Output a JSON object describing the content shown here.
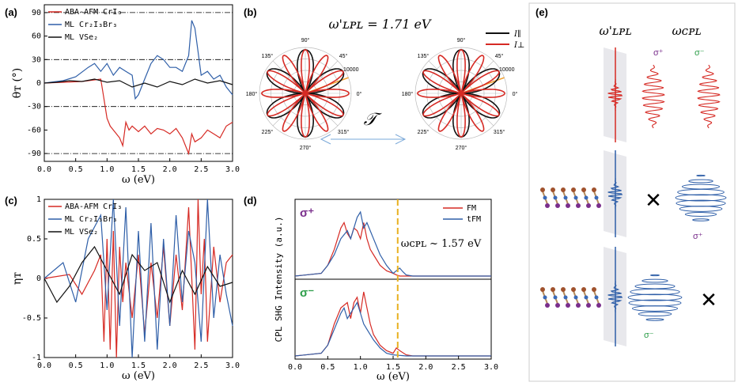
{
  "colors": {
    "red": "#d62a24",
    "blue": "#2f5fa8",
    "black": "#111111",
    "orange": "#f0a030",
    "yellow": "#e8b020",
    "purple": "#7a2f8c",
    "green": "#2e9e4a"
  },
  "chart_data": [
    {
      "panel": "(a)",
      "type": "line",
      "xlabel": "ω (eV)",
      "ylabel": "θᴛ (°)",
      "xlim": [
        0,
        3
      ],
      "ylim": [
        -100,
        100
      ],
      "xticks": [
        "0.0",
        "0.5",
        "1.0",
        "1.5",
        "2.0",
        "2.5",
        "3.0"
      ],
      "yticks": [
        "90",
        "60",
        "30",
        "0",
        "-30",
        "-60",
        "-90"
      ],
      "ytick_values": [
        90,
        60,
        30,
        0,
        -30,
        -60,
        -90
      ],
      "reference_lines": [
        90,
        30,
        -30,
        -90
      ],
      "legend": [
        "ABA-AFM CrI₃",
        "ML Cr₂I₃Br₃",
        "ML VSe₂"
      ],
      "series": [
        {
          "name": "ABA-AFM CrI₃",
          "color": "red",
          "x": [
            0,
            0.3,
            0.6,
            0.9,
            0.95,
            1.0,
            1.05,
            1.1,
            1.15,
            1.2,
            1.25,
            1.3,
            1.35,
            1.4,
            1.5,
            1.6,
            1.7,
            1.8,
            1.9,
            2.0,
            2.1,
            2.2,
            2.3,
            2.35,
            2.4,
            2.5,
            2.6,
            2.7,
            2.8,
            2.9,
            3.0
          ],
          "y": [
            0,
            1,
            2,
            5,
            -20,
            -45,
            -55,
            -60,
            -65,
            -70,
            -80,
            -50,
            -60,
            -55,
            -62,
            -55,
            -65,
            -58,
            -60,
            -65,
            -58,
            -70,
            -90,
            -65,
            -75,
            -70,
            -60,
            -65,
            -70,
            -55,
            -50
          ]
        },
        {
          "name": "ML Cr₂I₃Br₃",
          "color": "blue",
          "x": [
            0,
            0.3,
            0.5,
            0.7,
            0.8,
            0.9,
            1.0,
            1.1,
            1.2,
            1.3,
            1.4,
            1.45,
            1.5,
            1.6,
            1.7,
            1.8,
            1.9,
            2.0,
            2.1,
            2.2,
            2.3,
            2.35,
            2.4,
            2.45,
            2.5,
            2.6,
            2.7,
            2.8,
            2.9,
            3.0
          ],
          "y": [
            0,
            3,
            8,
            20,
            25,
            15,
            25,
            10,
            20,
            15,
            10,
            -20,
            -15,
            5,
            25,
            35,
            30,
            20,
            20,
            15,
            35,
            80,
            70,
            40,
            10,
            15,
            5,
            10,
            -5,
            -15
          ]
        },
        {
          "name": "ML VSe₂",
          "color": "black",
          "x": [
            0,
            0.2,
            0.4,
            0.6,
            0.8,
            1.0,
            1.2,
            1.4,
            1.6,
            1.8,
            2.0,
            2.2,
            2.4,
            2.6,
            2.8,
            3.0
          ],
          "y": [
            0,
            1,
            3,
            2,
            5,
            1,
            3,
            -5,
            0,
            -5,
            2,
            -2,
            5,
            0,
            3,
            -2
          ]
        }
      ]
    },
    {
      "panel": "(b)",
      "type": "polar",
      "title": "ω'ʟᴘʟ = 1.71 eV",
      "symbol": "𝒯",
      "angle_labels": [
        "0°",
        "45°",
        "90°",
        "135°",
        "180°",
        "225°",
        "270°",
        "315°"
      ],
      "radial_label": "10000",
      "legend": [
        "I∥",
        "I⊥"
      ],
      "series": [
        {
          "name": "I∥",
          "color": "black",
          "petals": 6,
          "offset_deg": 90
        },
        {
          "name": "I⊥",
          "color": "red",
          "petals": 12,
          "offset_deg": 0
        }
      ]
    },
    {
      "panel": "(c)",
      "type": "line",
      "xlabel": "ω (eV)",
      "ylabel": "ηᴛ",
      "xlim": [
        0,
        3
      ],
      "ylim": [
        -1,
        1
      ],
      "xticks": [
        "0.0",
        "0.5",
        "1.0",
        "1.5",
        "2.0",
        "2.5",
        "3.0"
      ],
      "yticks": [
        "1",
        "0.5",
        "0",
        "-0.5",
        "-1"
      ],
      "ytick_values": [
        1,
        0.5,
        0,
        -0.5,
        -1
      ],
      "legend": [
        "ABA-AFM CrI₃",
        "ML Cr₂I₃Br₃",
        "ML VSe₂"
      ],
      "series": [
        {
          "name": "ABA-AFM CrI₃",
          "color": "red",
          "x": [
            0,
            0.4,
            0.6,
            0.8,
            0.9,
            0.95,
            1.0,
            1.05,
            1.1,
            1.15,
            1.2,
            1.25,
            1.3,
            1.4,
            1.5,
            1.6,
            1.7,
            1.8,
            1.9,
            2.0,
            2.1,
            2.2,
            2.3,
            2.4,
            2.45,
            2.5,
            2.55,
            2.6,
            2.7,
            2.8,
            2.9,
            3.0
          ],
          "y": [
            0,
            0.05,
            -0.2,
            0.1,
            0.3,
            -0.8,
            0.5,
            -0.9,
            0.6,
            -1.0,
            0.4,
            -0.3,
            0.2,
            -0.5,
            0.3,
            -0.7,
            0.2,
            -0.5,
            0.4,
            -0.6,
            0.3,
            -0.4,
            0.9,
            -0.9,
            1.0,
            -0.2,
            0.5,
            -0.8,
            0.4,
            -0.3,
            0.2,
            0.3
          ]
        },
        {
          "name": "ML Cr₂I₃Br₃",
          "color": "blue",
          "x": [
            0,
            0.3,
            0.5,
            0.7,
            0.9,
            1.0,
            1.1,
            1.2,
            1.3,
            1.4,
            1.5,
            1.6,
            1.7,
            1.8,
            1.9,
            2.0,
            2.1,
            2.2,
            2.3,
            2.4,
            2.5,
            2.6,
            2.7,
            2.8,
            2.9,
            3.0
          ],
          "y": [
            0,
            0.2,
            -0.3,
            0.5,
            0.8,
            -0.4,
            1.0,
            -0.6,
            0.9,
            -1.0,
            0.6,
            -0.8,
            0.7,
            -0.9,
            0.5,
            -0.6,
            0.8,
            -0.3,
            0.6,
            0.2,
            -0.8,
            1.0,
            -0.5,
            0.3,
            -0.2,
            -0.6
          ]
        },
        {
          "name": "ML VSe₂",
          "color": "black",
          "x": [
            0,
            0.2,
            0.4,
            0.6,
            0.8,
            1.0,
            1.2,
            1.4,
            1.6,
            1.8,
            2.0,
            2.2,
            2.4,
            2.6,
            2.8,
            3.0
          ],
          "y": [
            0,
            -0.3,
            -0.1,
            0.2,
            0.4,
            0.1,
            -0.2,
            0.3,
            0.1,
            0.2,
            -0.3,
            0.1,
            -0.2,
            0.15,
            -0.1,
            -0.05
          ]
        }
      ]
    },
    {
      "panel": "(d)",
      "type": "line",
      "xlabel": "ω (eV)",
      "ylabel": "CPL SHG Intensity (a.u.)",
      "xlim": [
        0,
        3
      ],
      "xticks": [
        "0.0",
        "0.5",
        "1.0",
        "1.5",
        "2.0",
        "2.5",
        "3.0"
      ],
      "marker_x": 1.57,
      "annotation": "ωᴄᴘʟ ~ 1.57 eV",
      "legend": [
        "FM",
        "tFM"
      ],
      "subplots": [
        {
          "label": "σ⁺",
          "series": [
            {
              "name": "FM",
              "color": "red",
              "x": [
                0,
                0.4,
                0.5,
                0.6,
                0.7,
                0.75,
                0.8,
                0.85,
                0.9,
                0.95,
                1.0,
                1.05,
                1.1,
                1.15,
                1.2,
                1.3,
                1.4,
                1.5,
                1.55,
                1.6,
                1.7,
                1.8,
                2.0,
                2.5,
                3.0
              ],
              "y": [
                0,
                0.05,
                0.2,
                0.5,
                0.9,
                1.0,
                0.8,
                0.7,
                0.9,
                0.85,
                0.7,
                1.0,
                0.7,
                0.5,
                0.4,
                0.2,
                0.1,
                0.05,
                0.02,
                0.0,
                0,
                0,
                0,
                0,
                0
              ]
            },
            {
              "name": "tFM",
              "color": "blue",
              "x": [
                0,
                0.4,
                0.5,
                0.6,
                0.7,
                0.8,
                0.85,
                0.9,
                0.95,
                1.0,
                1.05,
                1.1,
                1.2,
                1.3,
                1.4,
                1.5,
                1.55,
                1.6,
                1.65,
                1.7,
                1.8,
                2.0,
                2.5,
                3.0
              ],
              "y": [
                0,
                0.05,
                0.2,
                0.4,
                0.7,
                0.85,
                0.7,
                0.9,
                1.1,
                1.2,
                0.9,
                1.0,
                0.7,
                0.4,
                0.2,
                0.05,
                0.1,
                0.15,
                0.08,
                0.02,
                0,
                0,
                0,
                0
              ]
            }
          ]
        },
        {
          "label": "σ⁻",
          "series": [
            {
              "name": "FM",
              "color": "red",
              "x": [
                0,
                0.4,
                0.5,
                0.6,
                0.7,
                0.8,
                0.85,
                0.9,
                0.95,
                1.0,
                1.05,
                1.1,
                1.15,
                1.2,
                1.3,
                1.4,
                1.5,
                1.55,
                1.6,
                1.7,
                1.8,
                2.0,
                2.5,
                3.0
              ],
              "y": [
                0,
                0.05,
                0.2,
                0.6,
                0.9,
                1.0,
                0.7,
                1.0,
                1.1,
                0.8,
                1.2,
                0.9,
                0.6,
                0.4,
                0.2,
                0.1,
                0.05,
                0.15,
                0.1,
                0.02,
                0,
                0,
                0,
                0
              ]
            },
            {
              "name": "tFM",
              "color": "blue",
              "x": [
                0,
                0.4,
                0.5,
                0.6,
                0.7,
                0.75,
                0.8,
                0.85,
                0.9,
                0.95,
                1.0,
                1.05,
                1.1,
                1.2,
                1.3,
                1.4,
                1.5,
                1.6,
                1.7,
                2.0,
                2.5,
                3.0
              ],
              "y": [
                0,
                0.05,
                0.2,
                0.5,
                0.8,
                0.9,
                0.7,
                0.8,
                0.9,
                1.0,
                0.8,
                0.6,
                0.5,
                0.3,
                0.15,
                0.05,
                0.02,
                0.01,
                0,
                0,
                0,
                0
              ]
            }
          ]
        }
      ]
    },
    {
      "panel": "(e)",
      "type": "diagram",
      "header_lpl": "ω'ʟᴘʟ",
      "header_cpl": "ωᴄᴘʟ",
      "sigma_plus": "σ⁺",
      "sigma_minus": "σ⁻",
      "cross": "✕"
    }
  ],
  "labels": {
    "a": "(a)",
    "b": "(b)",
    "c": "(c)",
    "d": "(d)",
    "e": "(e)"
  }
}
